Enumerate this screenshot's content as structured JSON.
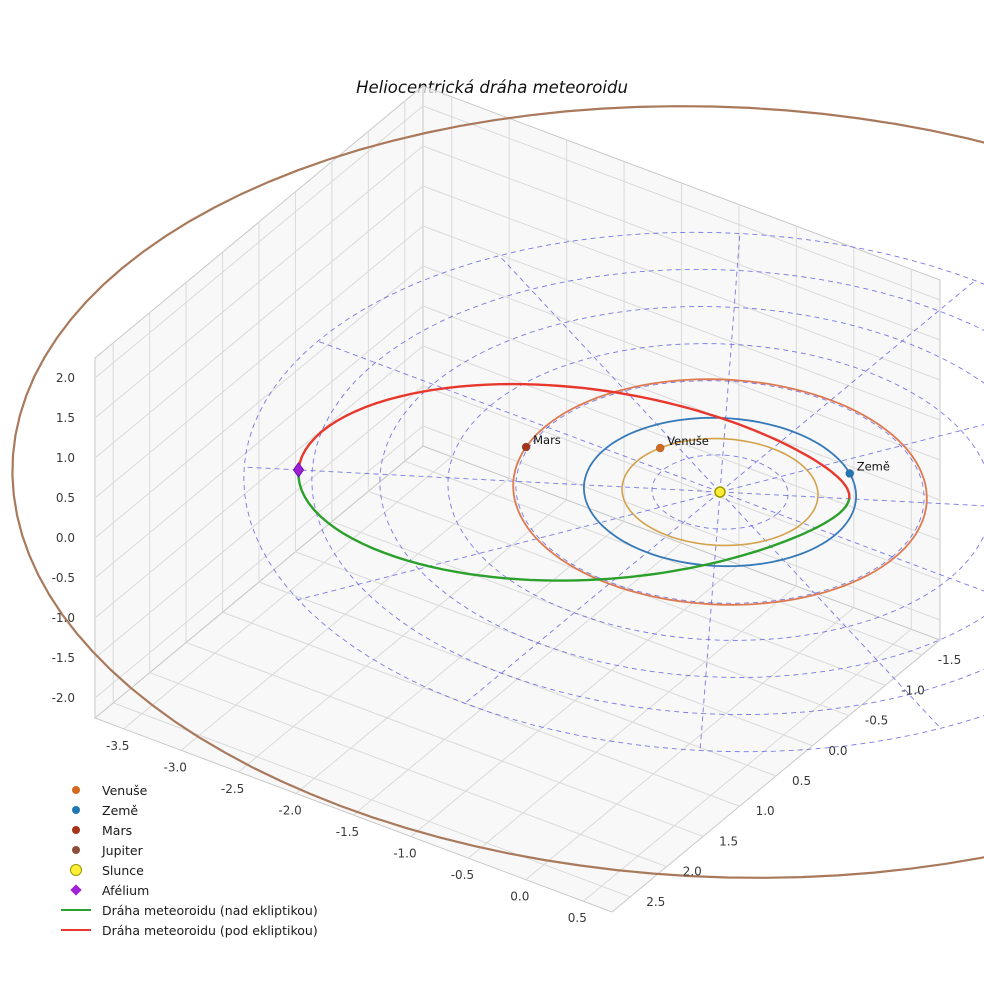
{
  "chart_data": {
    "type": "line",
    "projection": "3d",
    "title": "Heliocentrická dráha meteoroidu",
    "axes": {
      "x_range": [
        -3.75,
        0.75
      ],
      "y_range": [
        -1.75,
        2.75
      ],
      "z_range": [
        -2.25,
        2.25
      ],
      "x_ticks": [
        "-3.5",
        "-3.0",
        "-2.5",
        "-2.0",
        "-1.5",
        "-1.0",
        "-0.5",
        "0.0",
        "0.5"
      ],
      "y_ticks": [
        "-1.5",
        "-1.0",
        "-0.5",
        "0.0",
        "0.5",
        "1.0",
        "1.5",
        "2.0",
        "2.5"
      ],
      "z_ticks": [
        "2.0",
        "1.5",
        "1.0",
        "0.5",
        "0.0",
        "-0.5",
        "-1.0",
        "-1.5",
        "-2.0"
      ],
      "grid": true
    },
    "ecliptic_grid": {
      "circle_radii_au": [
        0.5,
        1.0,
        1.5,
        2.0,
        2.5,
        3.0,
        3.5
      ],
      "spoke_count": 12,
      "spoke_radius_au": 3.5,
      "color": "#4d4ddd",
      "style": "dashed"
    },
    "orbits": [
      {
        "name": "Venuše",
        "radius_au": 0.72,
        "color": "#d4a24a"
      },
      {
        "name": "Země",
        "radius_au": 1.0,
        "color": "#3579b8"
      },
      {
        "name": "Mars",
        "radius_au": 1.52,
        "color": "#dd7a50"
      },
      {
        "name": "Jupiter",
        "radius_au": 5.2,
        "color": "#a9795c"
      }
    ],
    "planets": [
      {
        "name": "Venuše",
        "radius_au": 0.72,
        "angle_deg": 200,
        "color": "#d2691e"
      },
      {
        "name": "Země",
        "radius_au": 1.0,
        "angle_deg": -50,
        "color": "#1f77b4"
      },
      {
        "name": "Mars",
        "radius_au": 1.52,
        "angle_deg": 168,
        "color": "#a63318"
      }
    ],
    "sun": {
      "name": "Slunce",
      "color": "#ffee33",
      "edge_color": "#9a9a00"
    },
    "meteoroid_orbit": {
      "aphelion_au": 3.1,
      "perihelion_au": 0.95,
      "perihelion_angle_deg": -30,
      "z_amplitude_au": 0.45,
      "above_ecliptic_color": "#2ca02c",
      "below_ecliptic_color": "#e8382d",
      "above_label": "Dráha meteoroidu (nad ekliptikou)",
      "below_label": "Dráha meteoroidu (pod ekliptikou)"
    },
    "aphelion_marker": {
      "label": "Afélium",
      "color": "#a020d8"
    }
  },
  "legend": {
    "items": [
      {
        "label": "Venuše",
        "marker": "dot",
        "color": "#d2691e"
      },
      {
        "label": "Země",
        "marker": "dot",
        "color": "#1f77b4"
      },
      {
        "label": "Mars",
        "marker": "dot",
        "color": "#a63318"
      },
      {
        "label": "Jupiter",
        "marker": "dot",
        "color": "#8b4f39"
      },
      {
        "label": "Slunce",
        "marker": "dot-large",
        "color": "#ffee33",
        "edge": "#9a9a00"
      },
      {
        "label": "Afélium",
        "marker": "diamond",
        "color": "#a020d8"
      },
      {
        "label": "Dráha meteoroidu (nad ekliptikou)",
        "marker": "line",
        "color": "#2ca02c"
      },
      {
        "label": "Dráha meteoroidu (pod ekliptikou)",
        "marker": "line",
        "color": "#e8382d"
      }
    ]
  }
}
